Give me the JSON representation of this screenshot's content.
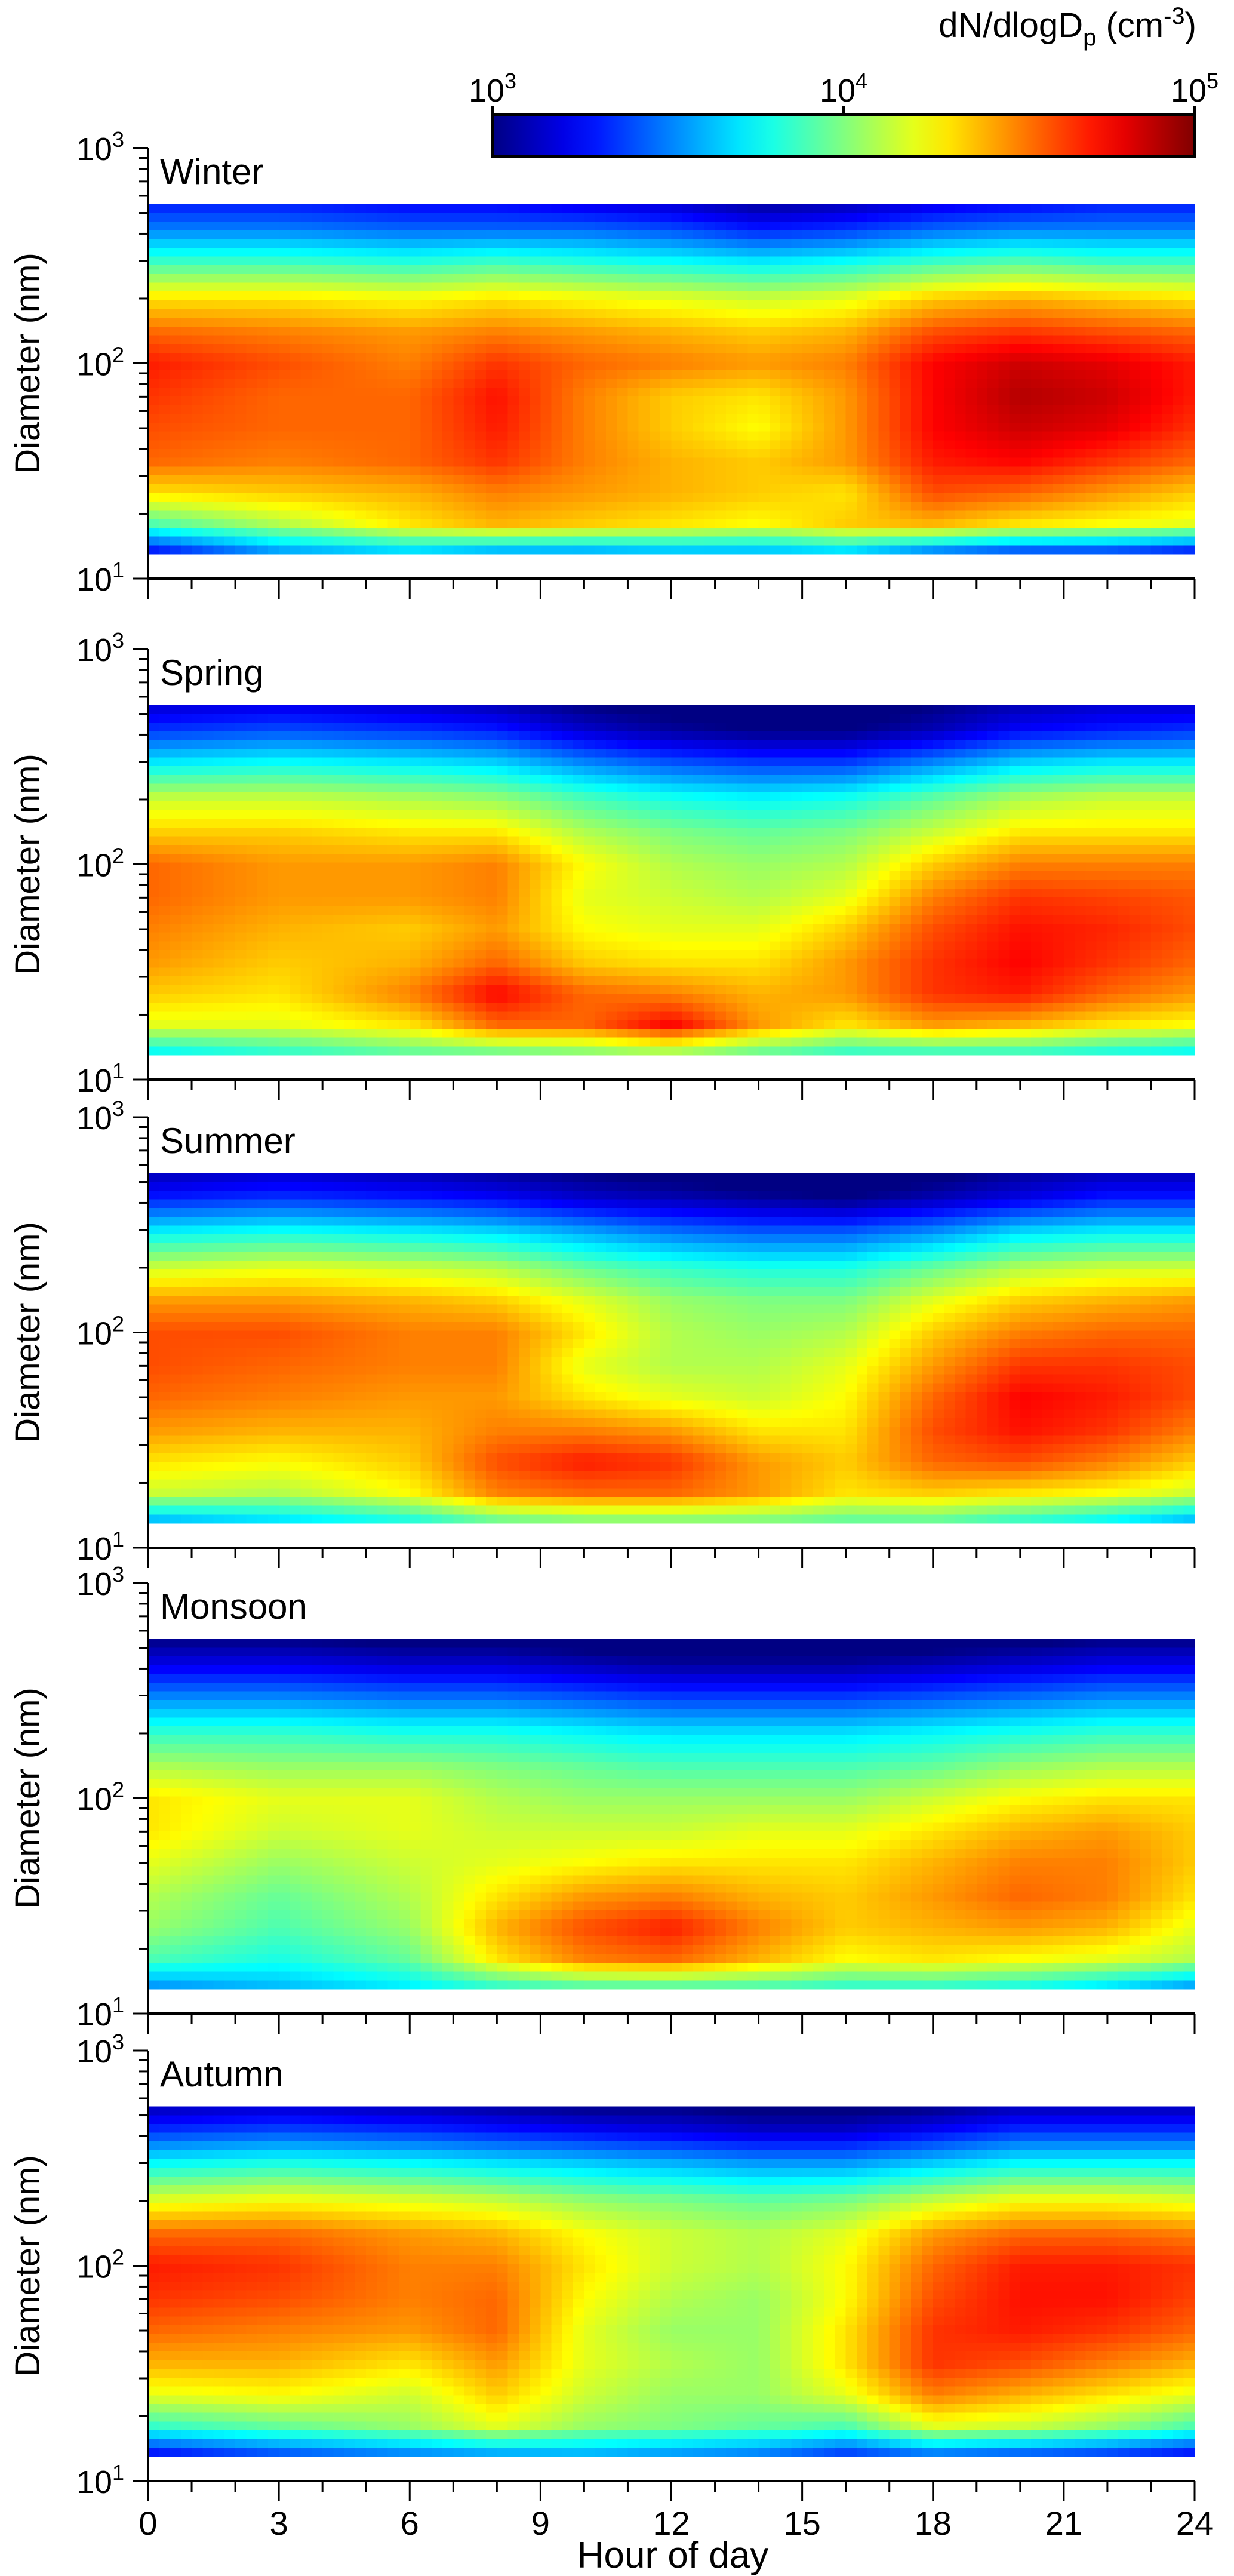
{
  "chart_data": {
    "type": "heatmap",
    "colorbar": {
      "title_main": "dN/dlogD",
      "title_sub": "p",
      "title_unit": " (cm",
      "title_unit_sup": "-3",
      "title_close": ")",
      "scale": "log",
      "range": [
        1000,
        100000
      ],
      "ticks": [
        {
          "base": "10",
          "exp": "3",
          "value": 1000
        },
        {
          "base": "10",
          "exp": "4",
          "value": 10000
        },
        {
          "base": "10",
          "exp": "5",
          "value": 100000
        }
      ],
      "colormap": "jet"
    },
    "x_axis": {
      "label": "Hour of day",
      "range": [
        0,
        24
      ],
      "ticks": [
        "0",
        "3",
        "6",
        "9",
        "12",
        "15",
        "18",
        "21",
        "24"
      ]
    },
    "y_axis": {
      "label": "Diameter (nm)",
      "scale": "log",
      "range": [
        10,
        1000
      ],
      "data_range": [
        13,
        550
      ],
      "ticks": [
        {
          "base": "10",
          "exp": "1",
          "value": 10
        },
        {
          "base": "10",
          "exp": "2",
          "value": 100
        },
        {
          "base": "10",
          "exp": "3",
          "value": 1000
        }
      ]
    },
    "hours": [
      0,
      3,
      6,
      8,
      10,
      12,
      14,
      16,
      18,
      20,
      22,
      24
    ],
    "diameters_nm": [
      13,
      18,
      25,
      35,
      50,
      70,
      100,
      140,
      200,
      300,
      420,
      550
    ],
    "panels": [
      {
        "name": "Winter",
        "log10_dNdlogDp": [
          [
            3.2,
            3.5,
            3.6,
            3.5,
            3.5,
            3.55,
            3.55,
            3.6,
            3.4,
            3.3,
            3.3,
            3.2
          ],
          [
            3.9,
            4.1,
            4.3,
            4.4,
            4.35,
            4.3,
            4.25,
            4.35,
            4.4,
            4.3,
            4.25,
            4.2
          ],
          [
            4.3,
            4.35,
            4.4,
            4.5,
            4.45,
            4.4,
            4.35,
            4.3,
            4.6,
            4.55,
            4.45,
            4.35
          ],
          [
            4.55,
            4.5,
            4.55,
            4.65,
            4.5,
            4.4,
            4.35,
            4.45,
            4.7,
            4.75,
            4.65,
            4.55
          ],
          [
            4.6,
            4.55,
            4.55,
            4.7,
            4.5,
            4.35,
            4.25,
            4.45,
            4.75,
            4.85,
            4.8,
            4.65
          ],
          [
            4.65,
            4.55,
            4.55,
            4.72,
            4.5,
            4.35,
            4.3,
            4.45,
            4.75,
            4.9,
            4.85,
            4.7
          ],
          [
            4.7,
            4.6,
            4.5,
            4.65,
            4.55,
            4.5,
            4.45,
            4.5,
            4.75,
            4.85,
            4.8,
            4.7
          ],
          [
            4.55,
            4.5,
            4.45,
            4.5,
            4.45,
            4.4,
            4.35,
            4.4,
            4.6,
            4.65,
            4.6,
            4.55
          ],
          [
            4.3,
            4.3,
            4.25,
            4.3,
            4.25,
            4.2,
            4.15,
            4.2,
            4.35,
            4.4,
            4.35,
            4.3
          ],
          [
            3.85,
            3.85,
            3.8,
            3.85,
            3.8,
            3.75,
            3.7,
            3.75,
            3.85,
            3.9,
            3.85,
            3.85
          ],
          [
            3.5,
            3.5,
            3.45,
            3.45,
            3.45,
            3.4,
            3.3,
            3.35,
            3.45,
            3.5,
            3.5,
            3.5
          ],
          [
            3.3,
            3.3,
            3.25,
            3.25,
            3.2,
            3.15,
            3.05,
            3.1,
            3.2,
            3.25,
            3.3,
            3.3
          ]
        ]
      },
      {
        "name": "Spring",
        "log10_dNdlogDp": [
          [
            3.7,
            3.8,
            3.9,
            3.9,
            3.95,
            4.0,
            3.9,
            3.8,
            3.8,
            3.8,
            3.75,
            3.7
          ],
          [
            4.2,
            4.2,
            4.3,
            4.55,
            4.55,
            4.75,
            4.45,
            4.3,
            4.45,
            4.4,
            4.3,
            4.25
          ],
          [
            4.35,
            4.3,
            4.5,
            4.75,
            4.55,
            4.5,
            4.4,
            4.45,
            4.65,
            4.7,
            4.55,
            4.45
          ],
          [
            4.45,
            4.35,
            4.4,
            4.55,
            4.35,
            4.3,
            4.3,
            4.45,
            4.65,
            4.75,
            4.65,
            4.55
          ],
          [
            4.5,
            4.4,
            4.35,
            4.45,
            4.25,
            4.2,
            4.2,
            4.35,
            4.6,
            4.72,
            4.68,
            4.6
          ],
          [
            4.55,
            4.45,
            4.45,
            4.5,
            4.2,
            4.15,
            4.1,
            4.2,
            4.5,
            4.65,
            4.62,
            4.58
          ],
          [
            4.55,
            4.45,
            4.45,
            4.5,
            4.25,
            4.1,
            4.05,
            4.1,
            4.35,
            4.5,
            4.5,
            4.5
          ],
          [
            4.35,
            4.35,
            4.3,
            4.3,
            4.1,
            4.0,
            3.95,
            4.0,
            4.15,
            4.3,
            4.3,
            4.3
          ],
          [
            4.15,
            4.15,
            4.1,
            4.05,
            3.9,
            3.8,
            3.75,
            3.8,
            3.95,
            4.1,
            4.15,
            4.15
          ],
          [
            3.7,
            3.75,
            3.7,
            3.65,
            3.5,
            3.4,
            3.35,
            3.35,
            3.5,
            3.65,
            3.7,
            3.7
          ],
          [
            3.35,
            3.4,
            3.35,
            3.3,
            3.15,
            3.05,
            3.0,
            3.0,
            3.1,
            3.25,
            3.3,
            3.35
          ],
          [
            3.15,
            3.2,
            3.15,
            3.1,
            3.0,
            2.95,
            2.9,
            2.9,
            3.0,
            3.1,
            3.15,
            3.15
          ]
        ]
      },
      {
        "name": "Summer",
        "log10_dNdlogDp": [
          [
            3.55,
            3.65,
            3.75,
            3.9,
            3.95,
            3.95,
            3.95,
            3.9,
            3.9,
            3.8,
            3.7,
            3.55
          ],
          [
            4.15,
            4.1,
            4.25,
            4.5,
            4.55,
            4.55,
            4.45,
            4.3,
            4.35,
            4.3,
            4.25,
            4.15
          ],
          [
            4.3,
            4.25,
            4.35,
            4.6,
            4.7,
            4.65,
            4.45,
            4.35,
            4.55,
            4.6,
            4.5,
            4.35
          ],
          [
            4.45,
            4.4,
            4.4,
            4.5,
            4.5,
            4.45,
            4.3,
            4.3,
            4.6,
            4.72,
            4.65,
            4.5
          ],
          [
            4.55,
            4.5,
            4.45,
            4.45,
            4.3,
            4.2,
            4.15,
            4.25,
            4.55,
            4.75,
            4.7,
            4.6
          ],
          [
            4.6,
            4.55,
            4.5,
            4.5,
            4.2,
            4.1,
            4.1,
            4.2,
            4.45,
            4.65,
            4.65,
            4.6
          ],
          [
            4.6,
            4.6,
            4.5,
            4.5,
            4.3,
            4.1,
            4.05,
            4.1,
            4.35,
            4.5,
            4.55,
            4.55
          ],
          [
            4.45,
            4.45,
            4.4,
            4.35,
            4.2,
            4.05,
            4.0,
            4.0,
            4.2,
            4.35,
            4.4,
            4.45
          ],
          [
            4.15,
            4.2,
            4.15,
            4.1,
            3.95,
            3.85,
            3.8,
            3.8,
            3.95,
            4.1,
            4.15,
            4.15
          ],
          [
            3.7,
            3.75,
            3.7,
            3.65,
            3.55,
            3.45,
            3.4,
            3.4,
            3.5,
            3.65,
            3.7,
            3.7
          ],
          [
            3.3,
            3.35,
            3.3,
            3.25,
            3.15,
            3.1,
            3.05,
            3.0,
            3.1,
            3.2,
            3.3,
            3.3
          ],
          [
            3.1,
            3.15,
            3.1,
            3.05,
            3.0,
            2.95,
            2.9,
            2.9,
            2.95,
            3.05,
            3.1,
            3.1
          ]
        ]
      },
      {
        "name": "Monsoon",
        "log10_dNdlogDp": [
          [
            3.5,
            3.6,
            3.7,
            3.8,
            3.85,
            3.85,
            3.85,
            3.8,
            3.8,
            3.75,
            3.65,
            3.5
          ],
          [
            3.9,
            3.8,
            3.95,
            4.3,
            4.5,
            4.55,
            4.4,
            4.25,
            4.3,
            4.25,
            4.2,
            4.1
          ],
          [
            4.05,
            3.9,
            4.05,
            4.4,
            4.6,
            4.7,
            4.5,
            4.35,
            4.4,
            4.45,
            4.4,
            4.2
          ],
          [
            4.1,
            3.95,
            4.1,
            4.3,
            4.45,
            4.5,
            4.4,
            4.35,
            4.45,
            4.55,
            4.5,
            4.3
          ],
          [
            4.2,
            4.05,
            4.15,
            4.2,
            4.25,
            4.3,
            4.3,
            4.3,
            4.4,
            4.5,
            4.5,
            4.35
          ],
          [
            4.3,
            4.15,
            4.2,
            4.15,
            4.15,
            4.15,
            4.2,
            4.2,
            4.3,
            4.4,
            4.45,
            4.35
          ],
          [
            4.3,
            4.2,
            4.2,
            4.1,
            4.05,
            4.05,
            4.05,
            4.05,
            4.15,
            4.25,
            4.3,
            4.3
          ],
          [
            4.1,
            4.05,
            4.05,
            4.0,
            3.95,
            3.9,
            3.9,
            3.9,
            3.95,
            4.05,
            4.1,
            4.1
          ],
          [
            3.85,
            3.85,
            3.8,
            3.8,
            3.75,
            3.7,
            3.7,
            3.7,
            3.75,
            3.8,
            3.85,
            3.85
          ],
          [
            3.5,
            3.5,
            3.45,
            3.45,
            3.4,
            3.35,
            3.35,
            3.35,
            3.4,
            3.45,
            3.5,
            3.5
          ],
          [
            3.2,
            3.2,
            3.15,
            3.15,
            3.1,
            3.05,
            3.05,
            3.05,
            3.1,
            3.15,
            3.2,
            3.2
          ],
          [
            3.0,
            3.0,
            2.95,
            2.95,
            2.9,
            2.9,
            2.9,
            2.9,
            2.9,
            2.95,
            3.0,
            3.0
          ]
        ]
      },
      {
        "name": "Autumn",
        "log10_dNdlogDp": [
          [
            3.2,
            3.35,
            3.45,
            3.5,
            3.55,
            3.5,
            3.45,
            3.3,
            3.4,
            3.35,
            3.3,
            3.2
          ],
          [
            3.85,
            3.95,
            4.05,
            4.2,
            4.05,
            4.0,
            3.95,
            3.9,
            4.2,
            4.15,
            4.05,
            3.9
          ],
          [
            4.2,
            4.25,
            4.15,
            4.35,
            4.15,
            4.05,
            4.05,
            4.2,
            4.5,
            4.4,
            4.3,
            4.2
          ],
          [
            4.4,
            4.4,
            4.3,
            4.45,
            4.2,
            4.1,
            4.05,
            4.3,
            4.65,
            4.6,
            4.5,
            4.4
          ],
          [
            4.55,
            4.5,
            4.45,
            4.55,
            4.2,
            4.05,
            4.05,
            4.3,
            4.65,
            4.7,
            4.65,
            4.55
          ],
          [
            4.65,
            4.6,
            4.5,
            4.55,
            4.25,
            4.1,
            4.05,
            4.25,
            4.6,
            4.72,
            4.72,
            4.62
          ],
          [
            4.7,
            4.65,
            4.5,
            4.5,
            4.3,
            4.15,
            4.1,
            4.25,
            4.55,
            4.7,
            4.7,
            4.65
          ],
          [
            4.55,
            4.55,
            4.45,
            4.4,
            4.25,
            4.15,
            4.1,
            4.2,
            4.45,
            4.55,
            4.55,
            4.5
          ],
          [
            4.2,
            4.25,
            4.2,
            4.15,
            4.05,
            4.0,
            3.95,
            4.0,
            4.15,
            4.25,
            4.25,
            4.2
          ],
          [
            3.75,
            3.8,
            3.75,
            3.7,
            3.65,
            3.6,
            3.55,
            3.55,
            3.65,
            3.75,
            3.75,
            3.75
          ],
          [
            3.35,
            3.4,
            3.35,
            3.3,
            3.25,
            3.2,
            3.15,
            3.15,
            3.25,
            3.35,
            3.35,
            3.35
          ],
          [
            3.1,
            3.15,
            3.1,
            3.05,
            3.0,
            3.0,
            2.95,
            2.95,
            3.0,
            3.1,
            3.1,
            3.1
          ]
        ]
      }
    ]
  }
}
